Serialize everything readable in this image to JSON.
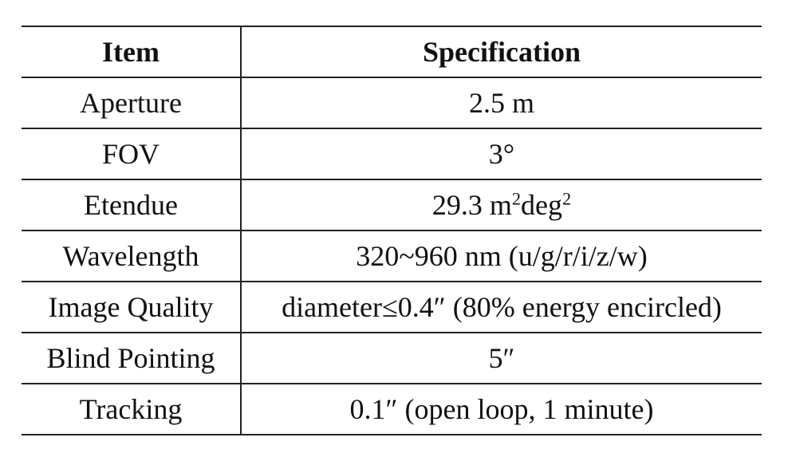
{
  "table": {
    "headers": [
      "Item",
      "Specification"
    ],
    "rows": [
      {
        "item": "Aperture",
        "spec": "2.5 m"
      },
      {
        "item": "FOV",
        "spec": "3°"
      },
      {
        "item": "Etendue",
        "spec_parts": [
          "29.3 m",
          "2",
          "deg",
          "2"
        ]
      },
      {
        "item": "Wavelength",
        "spec": "320~960 nm (u/g/r/i/z/w)"
      },
      {
        "item": "Image Quality",
        "spec": "diameter≤0.4″ (80% energy encircled)"
      },
      {
        "item": "Blind Pointing",
        "spec": "5″"
      },
      {
        "item": "Tracking",
        "spec": "0.1″ (open loop, 1 minute)"
      }
    ]
  }
}
